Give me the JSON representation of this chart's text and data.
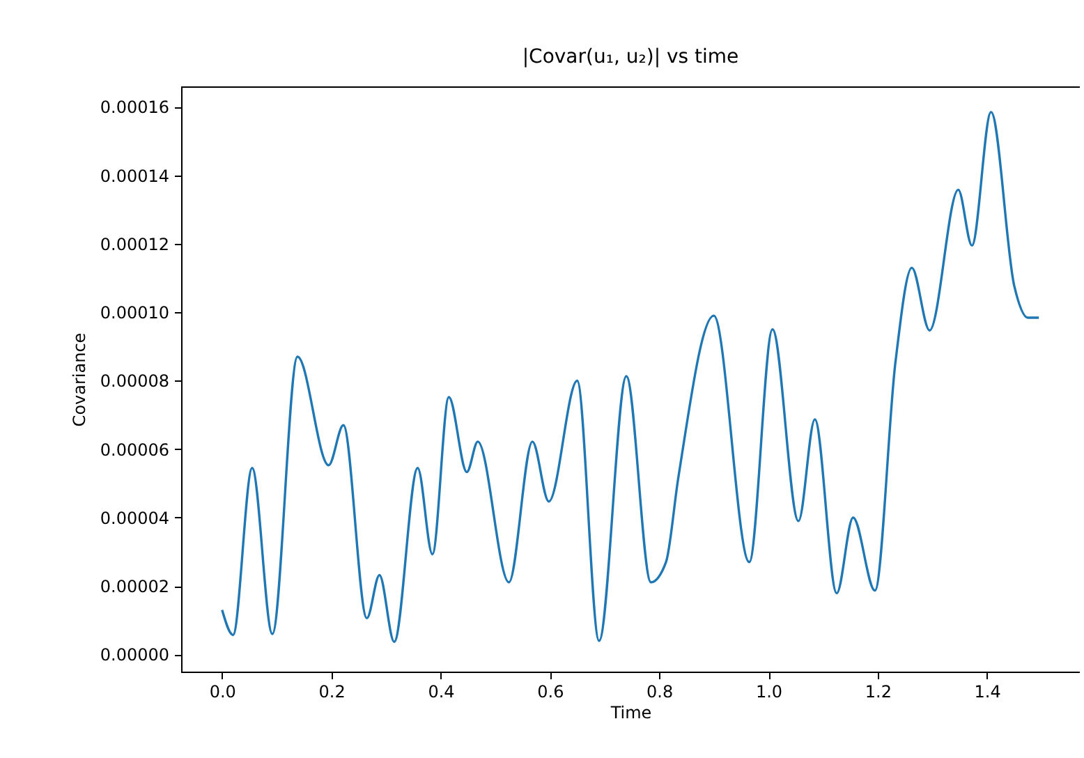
{
  "chart_data": {
    "type": "line",
    "title": "|Covar(u₁, u₂)| vs time",
    "xlabel": "Time",
    "ylabel": "Covariance",
    "x": [
      0,
      0.02,
      0.055,
      0.092,
      0.138,
      0.195,
      0.222,
      0.265,
      0.288,
      0.315,
      0.358,
      0.385,
      0.415,
      0.448,
      0.468,
      0.525,
      0.568,
      0.598,
      0.65,
      0.69,
      0.74,
      0.785,
      0.8125,
      0.835,
      0.9,
      0.965,
      1.0075,
      1.055,
      1.085,
      1.125,
      1.155,
      1.195,
      1.2325,
      1.2625,
      1.295,
      1.3475,
      1.3725,
      1.4075,
      1.45,
      1.475,
      1.495
    ],
    "series": [
      {
        "color": "#1f77b4",
        "values": [
          1.3e-05,
          5.7e-06,
          5.45e-05,
          6e-06,
          8.7e-05,
          5.53e-05,
          6.7e-05,
          1.06e-05,
          2.32e-05,
          3.7e-06,
          5.45e-05,
          2.93e-05,
          7.52e-05,
          5.33e-05,
          6.22e-05,
          2.11e-05,
          6.22e-05,
          4.47e-05,
          8e-05,
          4e-06,
          8.13e-05,
          2.11e-05,
          2.7e-05,
          5.16e-05,
          9.9e-05,
          2.7e-05,
          9.5e-05,
          3.9e-05,
          6.87e-05,
          1.79e-05,
          4e-05,
          1.87e-05,
          8.54e-05,
          0.000113,
          9.47e-05,
          0.0001358,
          0.0001195,
          0.0001585,
          0.0001077,
          9.84e-05,
          9.84e-05
        ]
      }
    ],
    "xlim": [
      -0.075,
      1.57
    ],
    "ylim": [
      -5e-06,
      0.000166
    ],
    "xticks": [
      {
        "value": 0,
        "label": "0.0"
      },
      {
        "value": 0.2,
        "label": "0.2"
      },
      {
        "value": 0.4,
        "label": "0.4"
      },
      {
        "value": 0.6,
        "label": "0.6"
      },
      {
        "value": 0.8,
        "label": "0.8"
      },
      {
        "value": 1,
        "label": "1.0"
      },
      {
        "value": 1.2,
        "label": "1.2"
      },
      {
        "value": 1.4,
        "label": "1.4"
      }
    ],
    "yticks": [
      {
        "value": 0,
        "label": "0.00000"
      },
      {
        "value": 2e-05,
        "label": "0.00002"
      },
      {
        "value": 4e-05,
        "label": "0.00004"
      },
      {
        "value": 6e-05,
        "label": "0.00006"
      },
      {
        "value": 8e-05,
        "label": "0.00008"
      },
      {
        "value": 0.0001,
        "label": "0.00010"
      },
      {
        "value": 0.00012,
        "label": "0.00012"
      },
      {
        "value": 0.00014,
        "label": "0.00014"
      },
      {
        "value": 0.00016,
        "label": "0.00016"
      }
    ],
    "grid": false
  }
}
